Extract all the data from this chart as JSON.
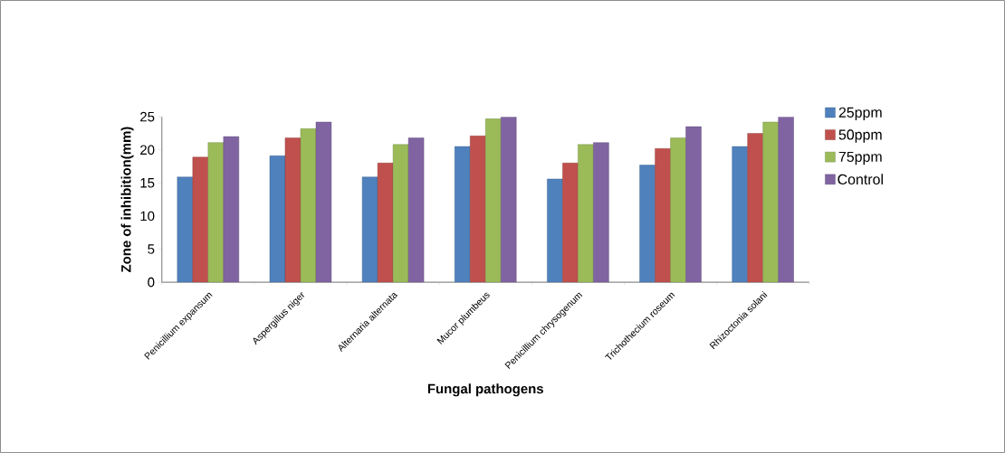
{
  "chart_data": {
    "type": "bar",
    "xlabel": "Fungal pathogens",
    "ylabel": "Zone of inhibition(mm)",
    "categories": [
      "Penicillium expansum",
      "Aspergillus niger",
      "Alternaria alternata",
      "Mucor plumbeus",
      "Penicillium chrysogenum",
      "Trichothecium roseum",
      "Rhizoctonia  solani"
    ],
    "series": [
      {
        "name": "25ppm",
        "color": "#4f81bd",
        "values": [
          15.9,
          19.1,
          15.9,
          20.5,
          15.6,
          17.7,
          20.5
        ]
      },
      {
        "name": "50ppm",
        "color": "#c0504d",
        "values": [
          18.9,
          21.8,
          18.0,
          22.1,
          18.0,
          20.2,
          22.5
        ]
      },
      {
        "name": "75ppm",
        "color": "#9bbb59",
        "values": [
          21.1,
          23.2,
          20.8,
          24.7,
          20.8,
          21.8,
          24.2
        ]
      },
      {
        "name": "Control",
        "color": "#8064a2",
        "values": [
          22.0,
          24.2,
          21.8,
          25.0,
          21.1,
          23.5,
          25.0
        ]
      }
    ],
    "ylim": [
      0,
      25
    ],
    "yticks": [
      0,
      5,
      10,
      15,
      20,
      25
    ],
    "grid": false,
    "legend": "right"
  }
}
